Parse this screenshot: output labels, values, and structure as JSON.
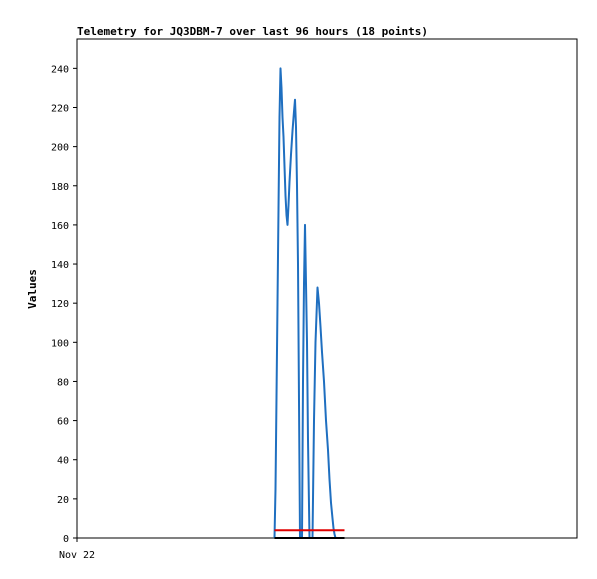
{
  "chart_data": {
    "type": "line",
    "title": "Telemetry for JQ3DBM-7 over last 96 hours (18 points)",
    "xlabel": "",
    "ylabel": "Values",
    "x_tick_labels": [
      "Nov 22"
    ],
    "ylim": [
      0,
      255
    ],
    "y_ticks": [
      0,
      20,
      40,
      60,
      80,
      100,
      120,
      140,
      160,
      180,
      200,
      220,
      240
    ],
    "grid": false,
    "series": [
      {
        "color": "#1f6fc0",
        "points": [
          [
            0.395,
            0
          ],
          [
            0.397,
            25
          ],
          [
            0.399,
            72
          ],
          [
            0.401,
            120
          ],
          [
            0.403,
            168
          ],
          [
            0.405,
            215
          ],
          [
            0.407,
            240
          ],
          [
            0.409,
            230
          ],
          [
            0.411,
            215
          ],
          [
            0.413,
            205
          ],
          [
            0.415,
            190
          ],
          [
            0.417,
            175
          ],
          [
            0.419,
            165
          ],
          [
            0.421,
            160
          ],
          [
            0.423,
            170
          ],
          [
            0.425,
            182
          ],
          [
            0.428,
            196
          ],
          [
            0.431,
            208
          ],
          [
            0.434,
            218
          ],
          [
            0.436,
            224
          ],
          [
            0.438,
            210
          ],
          [
            0.44,
            180
          ],
          [
            0.442,
            140
          ],
          [
            0.444,
            70
          ],
          [
            0.446,
            0
          ],
          [
            0.45,
            0
          ],
          [
            0.452,
            80
          ],
          [
            0.454,
            130
          ],
          [
            0.456,
            160
          ],
          [
            0.458,
            130
          ],
          [
            0.46,
            100
          ],
          [
            0.462,
            50
          ],
          [
            0.465,
            0
          ],
          [
            0.471,
            0
          ],
          [
            0.474,
            60
          ],
          [
            0.477,
            100
          ],
          [
            0.481,
            128
          ],
          [
            0.484,
            120
          ],
          [
            0.487,
            108
          ],
          [
            0.49,
            95
          ],
          [
            0.494,
            80
          ],
          [
            0.498,
            60
          ],
          [
            0.502,
            45
          ],
          [
            0.505,
            30
          ],
          [
            0.508,
            18
          ],
          [
            0.511,
            10
          ],
          [
            0.513,
            5
          ],
          [
            0.515,
            2
          ],
          [
            0.517,
            0
          ]
        ]
      },
      {
        "color": "#e00000",
        "points": [
          [
            0.395,
            4
          ],
          [
            0.535,
            4
          ]
        ]
      },
      {
        "color": "#000000",
        "points": [
          [
            0.395,
            0
          ],
          [
            0.535,
            0
          ]
        ]
      }
    ]
  }
}
